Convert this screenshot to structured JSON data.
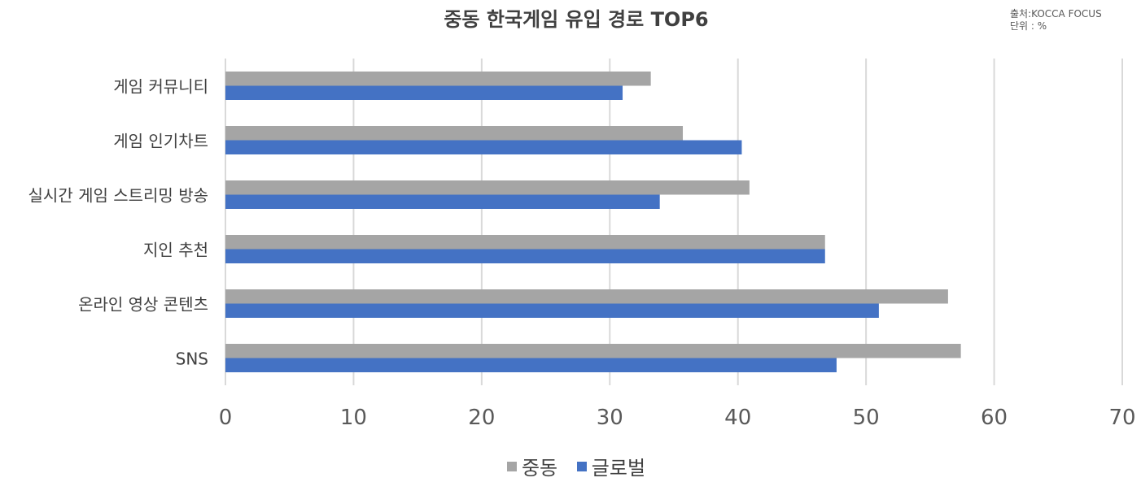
{
  "chart_data": {
    "type": "bar",
    "orientation": "horizontal",
    "title": "중동 한국게임 유입 경로 TOP6",
    "source_lines": [
      "출처:KOCCA FOCUS",
      "단위 : %"
    ],
    "categories": [
      "게임 커뮤니티",
      "게임 인기차트",
      "실시간 게임 스트리밍 방송",
      "지인 추천",
      "온라인 영상 콘텐츠",
      "SNS"
    ],
    "series": [
      {
        "name": "중동",
        "color": "#a5a5a5",
        "values": [
          33.2,
          35.7,
          40.9,
          46.8,
          56.4,
          57.4
        ]
      },
      {
        "name": "글로벌",
        "color": "#4472c4",
        "values": [
          31.0,
          40.3,
          33.9,
          46.8,
          51.0,
          47.7
        ]
      }
    ],
    "xlim": [
      0,
      70
    ],
    "xticks": [
      "0",
      "10",
      "20",
      "30",
      "40",
      "50",
      "60",
      "70"
    ],
    "grid": true,
    "legend_position": "bottom",
    "xlabel": "",
    "ylabel": ""
  }
}
